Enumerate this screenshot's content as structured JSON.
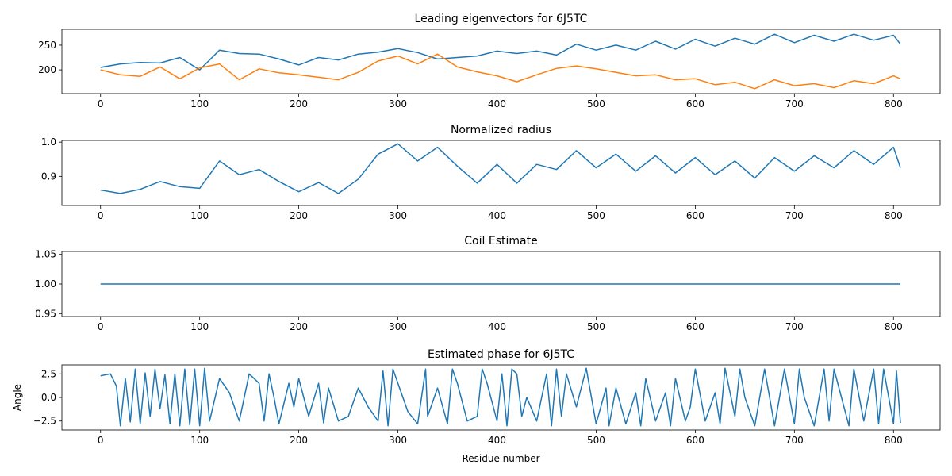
{
  "figure": {
    "xlabel": "Residue number"
  },
  "chart_data": [
    {
      "type": "line",
      "title": "Leading eigenvectors for 6J5TC",
      "xlabel": "",
      "ylabel": "",
      "xlim": [
        -39,
        847
      ],
      "ylim": [
        152,
        282
      ],
      "xticks": [
        0,
        100,
        200,
        300,
        400,
        500,
        600,
        700,
        800
      ],
      "yticks": [
        200,
        250
      ],
      "grid": false,
      "colors": [
        "#1f77b4",
        "#ff7f0e"
      ],
      "x": [
        0,
        20,
        40,
        60,
        80,
        100,
        120,
        140,
        160,
        180,
        200,
        220,
        240,
        260,
        280,
        300,
        320,
        340,
        360,
        380,
        400,
        420,
        440,
        460,
        480,
        500,
        520,
        540,
        560,
        580,
        600,
        620,
        640,
        660,
        680,
        700,
        720,
        740,
        760,
        780,
        800,
        807
      ],
      "series": [
        {
          "values": [
            205,
            212,
            215,
            214,
            225,
            200,
            240,
            233,
            232,
            222,
            210,
            225,
            220,
            232,
            236,
            243,
            235,
            222,
            225,
            228,
            238,
            233,
            238,
            230,
            252,
            240,
            250,
            240,
            258,
            242,
            262,
            248,
            264,
            252,
            272,
            255,
            270,
            258,
            272,
            260,
            270,
            252
          ]
        },
        {
          "values": [
            200,
            190,
            187,
            206,
            182,
            204,
            212,
            180,
            202,
            194,
            190,
            185,
            180,
            195,
            218,
            228,
            212,
            232,
            206,
            196,
            188,
            176,
            190,
            203,
            208,
            202,
            195,
            188,
            190,
            180,
            182,
            170,
            175,
            162,
            180,
            168,
            172,
            164,
            178,
            172,
            188,
            182
          ]
        }
      ]
    },
    {
      "type": "line",
      "title": "Normalized radius",
      "xlabel": "",
      "ylabel": "",
      "xlim": [
        -39,
        847
      ],
      "ylim": [
        0.815,
        1.005
      ],
      "xticks": [
        0,
        100,
        200,
        300,
        400,
        500,
        600,
        700,
        800
      ],
      "yticks": [
        0.9,
        1.0
      ],
      "ytick_labels": [
        "0.9",
        "1.0"
      ],
      "grid": false,
      "colors": [
        "#1f77b4"
      ],
      "x": [
        0,
        20,
        40,
        60,
        80,
        100,
        120,
        140,
        160,
        180,
        200,
        220,
        240,
        260,
        280,
        300,
        320,
        340,
        360,
        380,
        400,
        420,
        440,
        460,
        480,
        500,
        520,
        540,
        560,
        580,
        600,
        620,
        640,
        660,
        680,
        700,
        720,
        740,
        760,
        780,
        800,
        807
      ],
      "series": [
        {
          "values": [
            0.86,
            0.85,
            0.862,
            0.885,
            0.87,
            0.865,
            0.945,
            0.905,
            0.92,
            0.885,
            0.855,
            0.882,
            0.85,
            0.892,
            0.965,
            0.995,
            0.945,
            0.985,
            0.93,
            0.88,
            0.935,
            0.88,
            0.935,
            0.92,
            0.975,
            0.925,
            0.965,
            0.915,
            0.96,
            0.91,
            0.955,
            0.905,
            0.945,
            0.895,
            0.955,
            0.915,
            0.96,
            0.925,
            0.975,
            0.935,
            0.985,
            0.925
          ]
        }
      ]
    },
    {
      "type": "line",
      "title": "Coil Estimate",
      "xlabel": "",
      "ylabel": "",
      "xlim": [
        -39,
        847
      ],
      "ylim": [
        0.945,
        1.055
      ],
      "xticks": [
        0,
        100,
        200,
        300,
        400,
        500,
        600,
        700,
        800
      ],
      "yticks": [
        0.95,
        1.0,
        1.05
      ],
      "ytick_labels": [
        "0.95",
        "1.00",
        "1.05"
      ],
      "grid": false,
      "colors": [
        "#1f77b4"
      ],
      "x": [
        0,
        807
      ],
      "series": [
        {
          "values": [
            1.0,
            1.0
          ]
        }
      ]
    },
    {
      "type": "line",
      "title": "Estimated phase for 6J5TC",
      "xlabel": "Residue number",
      "ylabel": "Angle",
      "xlim": [
        -39,
        847
      ],
      "ylim": [
        -3.45,
        3.45
      ],
      "xticks": [
        0,
        100,
        200,
        300,
        400,
        500,
        600,
        700,
        800
      ],
      "yticks": [
        -2.5,
        0.0,
        2.5
      ],
      "ytick_labels": [
        "−2.5",
        "0.0",
        "2.5"
      ],
      "grid": false,
      "colors": [
        "#1f77b4"
      ],
      "x": [
        0,
        10,
        16,
        20,
        25,
        30,
        35,
        40,
        45,
        50,
        55,
        60,
        65,
        70,
        75,
        80,
        85,
        90,
        95,
        100,
        105,
        110,
        120,
        130,
        140,
        150,
        160,
        165,
        170,
        175,
        180,
        190,
        195,
        200,
        210,
        220,
        225,
        230,
        240,
        250,
        260,
        270,
        280,
        285,
        290,
        295,
        300,
        310,
        320,
        328,
        330,
        340,
        350,
        355,
        360,
        370,
        380,
        385,
        390,
        400,
        405,
        410,
        415,
        420,
        425,
        430,
        440,
        450,
        455,
        460,
        465,
        470,
        480,
        490,
        500,
        510,
        513,
        520,
        530,
        540,
        545,
        550,
        560,
        570,
        575,
        580,
        590,
        595,
        600,
        610,
        620,
        625,
        630,
        640,
        645,
        650,
        660,
        670,
        675,
        680,
        690,
        700,
        705,
        710,
        720,
        730,
        735,
        740,
        750,
        755,
        760,
        770,
        780,
        785,
        790,
        800,
        803,
        807
      ],
      "series": [
        {
          "values": [
            2.3,
            2.5,
            1.2,
            -3.0,
            2.0,
            -2.6,
            3.0,
            -2.8,
            2.6,
            -2.0,
            3.0,
            -1.2,
            2.4,
            -2.8,
            2.5,
            -3.0,
            3.0,
            -2.9,
            3.0,
            -3.0,
            3.1,
            -2.5,
            2.0,
            0.5,
            -2.5,
            2.5,
            1.5,
            -2.5,
            2.5,
            0.0,
            -2.8,
            1.5,
            -1.0,
            2.0,
            -2.0,
            1.5,
            -2.7,
            1.0,
            -2.5,
            -2.0,
            1.0,
            -1.0,
            -2.5,
            2.8,
            -3.0,
            3.0,
            1.5,
            -1.5,
            -2.8,
            3.0,
            -2.0,
            1.0,
            -2.8,
            3.0,
            1.5,
            -2.5,
            -2.0,
            3.0,
            1.5,
            -2.5,
            2.5,
            -3.0,
            3.0,
            2.5,
            -2.0,
            0.0,
            -2.5,
            2.5,
            -3.0,
            3.0,
            -2.0,
            2.5,
            -1.0,
            3.1,
            -2.8,
            1.0,
            -3.0,
            1.0,
            -2.8,
            0.5,
            -3.0,
            2.0,
            -2.5,
            0.5,
            -3.0,
            2.0,
            -2.5,
            -1.0,
            3.0,
            -2.5,
            0.5,
            -2.8,
            3.1,
            -2.0,
            3.0,
            0.0,
            -3.0,
            3.0,
            0.0,
            -3.0,
            3.0,
            -2.8,
            3.0,
            0.0,
            -3.0,
            3.0,
            -2.5,
            3.0,
            -1.0,
            -3.0,
            3.0,
            -2.5,
            3.0,
            -2.8,
            3.0,
            -2.8,
            2.8,
            -2.7
          ]
        }
      ]
    }
  ]
}
